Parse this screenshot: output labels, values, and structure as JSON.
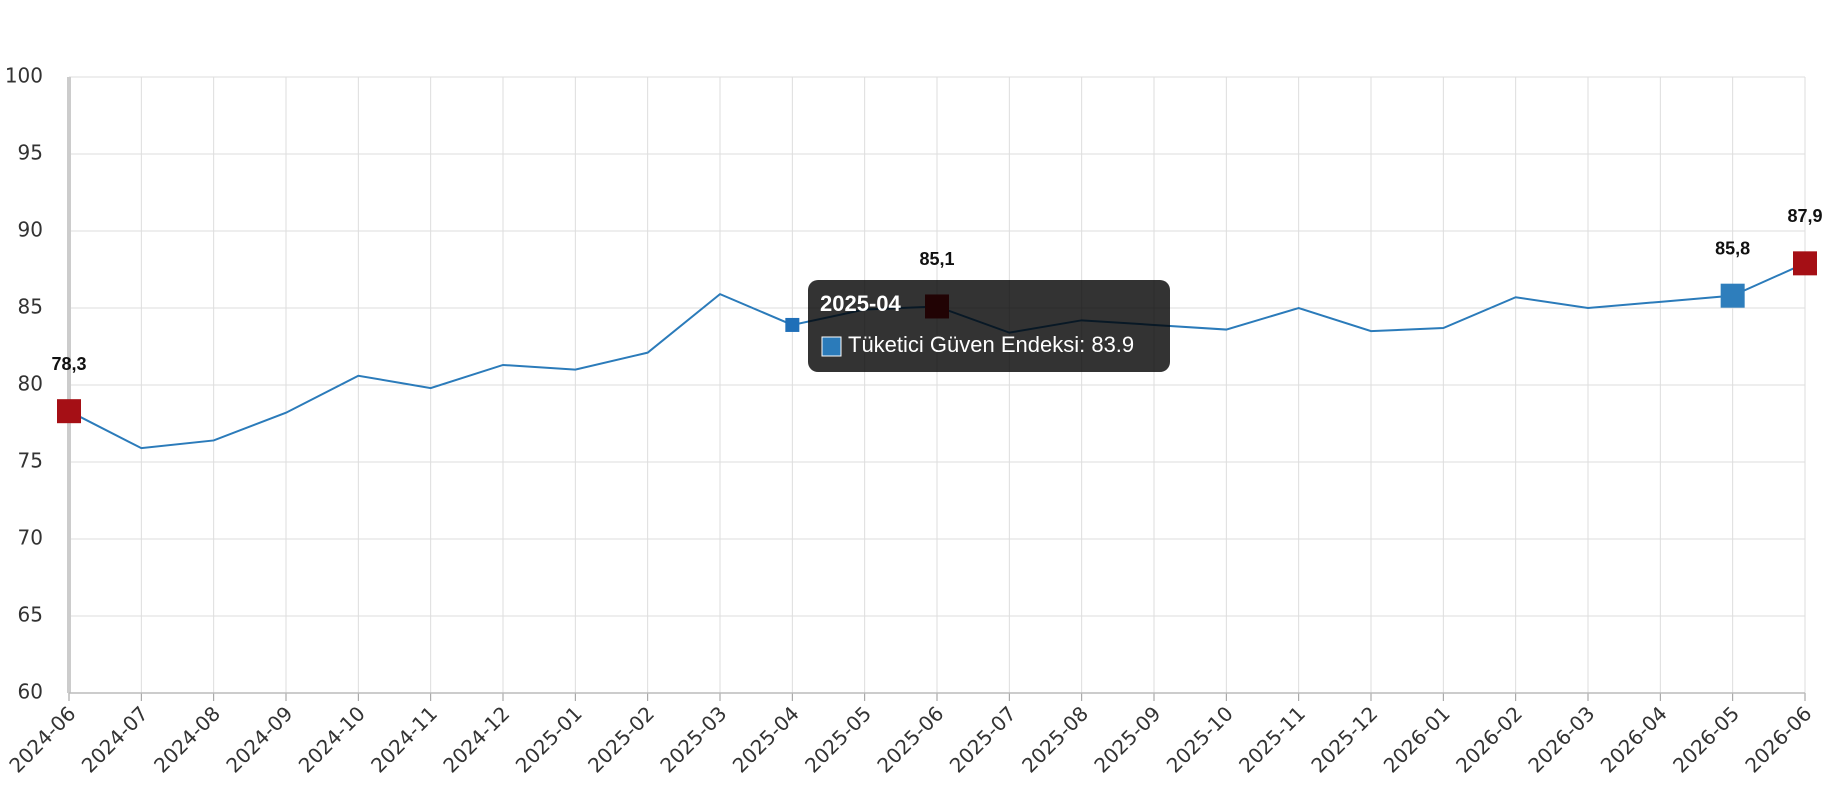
{
  "chart_data": {
    "type": "line",
    "categories": [
      "2024-06",
      "2024-07",
      "2024-08",
      "2024-09",
      "2024-10",
      "2024-11",
      "2024-12",
      "2025-01",
      "2025-02",
      "2025-03",
      "2025-04",
      "2025-05",
      "2025-06",
      "2025-07",
      "2025-08",
      "2025-09",
      "2025-10",
      "2025-11",
      "2025-12",
      "2026-01",
      "2026-02",
      "2026-03",
      "2026-04",
      "2026-05",
      "2026-06"
    ],
    "series": [
      {
        "name": "Tüketici Güven Endeksi",
        "color": "#2b7bba",
        "values": [
          78.3,
          75.9,
          76.4,
          78.2,
          80.6,
          79.8,
          81.3,
          81.0,
          82.1,
          85.9,
          83.9,
          84.9,
          85.1,
          83.4,
          84.2,
          83.9,
          83.6,
          85.0,
          83.5,
          83.7,
          85.7,
          85.0,
          85.4,
          85.8,
          87.9
        ],
        "value_labels": [
          "78,3",
          null,
          null,
          null,
          null,
          null,
          null,
          null,
          null,
          null,
          null,
          null,
          "85,1",
          null,
          null,
          null,
          null,
          null,
          null,
          null,
          null,
          null,
          null,
          "85,8",
          "87,9"
        ],
        "point_colors": [
          "#a50f15",
          null,
          null,
          null,
          null,
          null,
          null,
          null,
          null,
          null,
          null,
          null,
          "#a50f15",
          null,
          null,
          null,
          null,
          null,
          null,
          null,
          null,
          null,
          null,
          "#2e7ebc",
          "#a50f15"
        ]
      }
    ],
    "ylim": [
      60,
      100
    ],
    "yticks": [
      60,
      65,
      70,
      75,
      80,
      85,
      90,
      95,
      100
    ],
    "grid": true,
    "tooltip": {
      "title": "2025-04",
      "label": "Tüketici Güven Endeksi: 83.9"
    }
  }
}
